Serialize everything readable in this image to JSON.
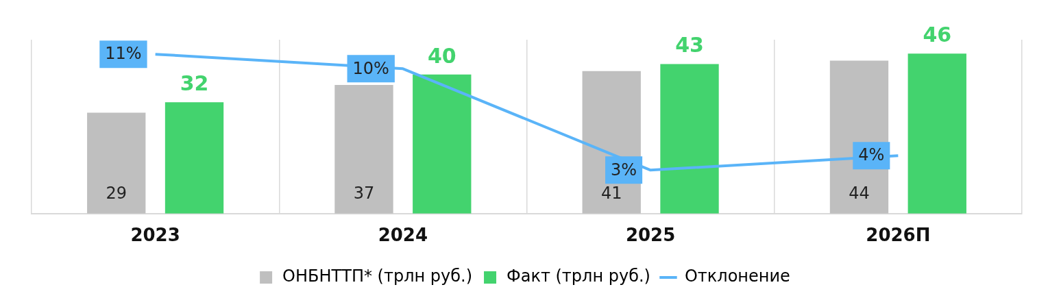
{
  "chart_data": {
    "type": "bar",
    "categories": [
      "2023",
      "2024",
      "2025",
      "2026П"
    ],
    "series": [
      {
        "name": "ОНБНТТП* (трлн руб.)",
        "color": "#bfbfbf",
        "values": [
          29,
          37,
          41,
          44
        ]
      },
      {
        "name": "Факт (трлн руб.)",
        "color": "#43d36e",
        "values": [
          32,
          40,
          43,
          46
        ]
      },
      {
        "name": "Отклонение",
        "type": "line",
        "axis": "y2",
        "color": "#5ab4f8",
        "values": [
          11,
          10,
          3,
          4
        ],
        "value_labels": [
          "11%",
          "10%",
          "3%",
          "4%"
        ]
      }
    ],
    "data_labels": true,
    "grid": "x",
    "legend": "bottom",
    "relative": false,
    "marker": "none"
  }
}
